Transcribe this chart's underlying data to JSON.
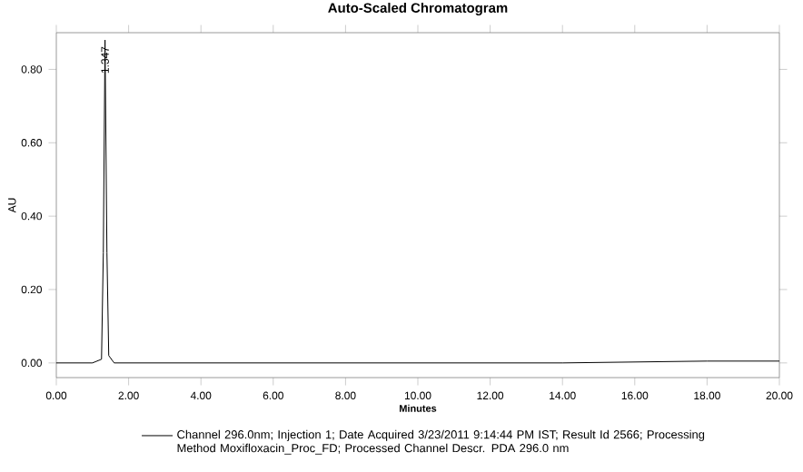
{
  "chart_data": {
    "type": "line",
    "title": "Auto-Scaled Chromatogram",
    "xlabel": "Minutes",
    "ylabel": "AU",
    "xlim": [
      0,
      20
    ],
    "ylim": [
      -0.04,
      0.9
    ],
    "xticks": [
      {
        "value": 0,
        "label": "0.00"
      },
      {
        "value": 2,
        "label": "2.00"
      },
      {
        "value": 4,
        "label": "4.00"
      },
      {
        "value": 6,
        "label": "6.00"
      },
      {
        "value": 8,
        "label": "8.00"
      },
      {
        "value": 10,
        "label": "10.00"
      },
      {
        "value": 12,
        "label": "12.00"
      },
      {
        "value": 14,
        "label": "14.00"
      },
      {
        "value": 16,
        "label": "16.00"
      },
      {
        "value": 18,
        "label": "18.00"
      },
      {
        "value": 20,
        "label": "20.00"
      }
    ],
    "yticks": [
      {
        "value": 0,
        "label": "0.00"
      },
      {
        "value": 0.2,
        "label": "0.20"
      },
      {
        "value": 0.4,
        "label": "0.40"
      },
      {
        "value": 0.6,
        "label": "0.60"
      },
      {
        "value": 0.8,
        "label": "0.80"
      }
    ],
    "series": [
      {
        "name": "Channel 296.0nm; Injection 1; Date Acquired 3/23/2011 9:14:44 PM IST; Result Id 2566; Processing Method Moxifloxacin_Proc_FD; Processed Channel Descr. PDA 296.0 nm",
        "color": "#000000",
        "x": [
          0,
          1.0,
          1.25,
          1.3,
          1.347,
          1.4,
          1.45,
          1.6,
          2,
          6,
          10,
          14,
          18,
          20
        ],
        "values": [
          0,
          0,
          0.01,
          0.3,
          0.88,
          0.3,
          0.02,
          0,
          0,
          0,
          0,
          0,
          0.005,
          0.005
        ]
      }
    ],
    "annotations": [
      {
        "text": "1.347",
        "x": 1.347,
        "y": 0.88
      }
    ],
    "grid": false,
    "legend": "bottom",
    "marker": "none",
    "line_style": "solid"
  }
}
